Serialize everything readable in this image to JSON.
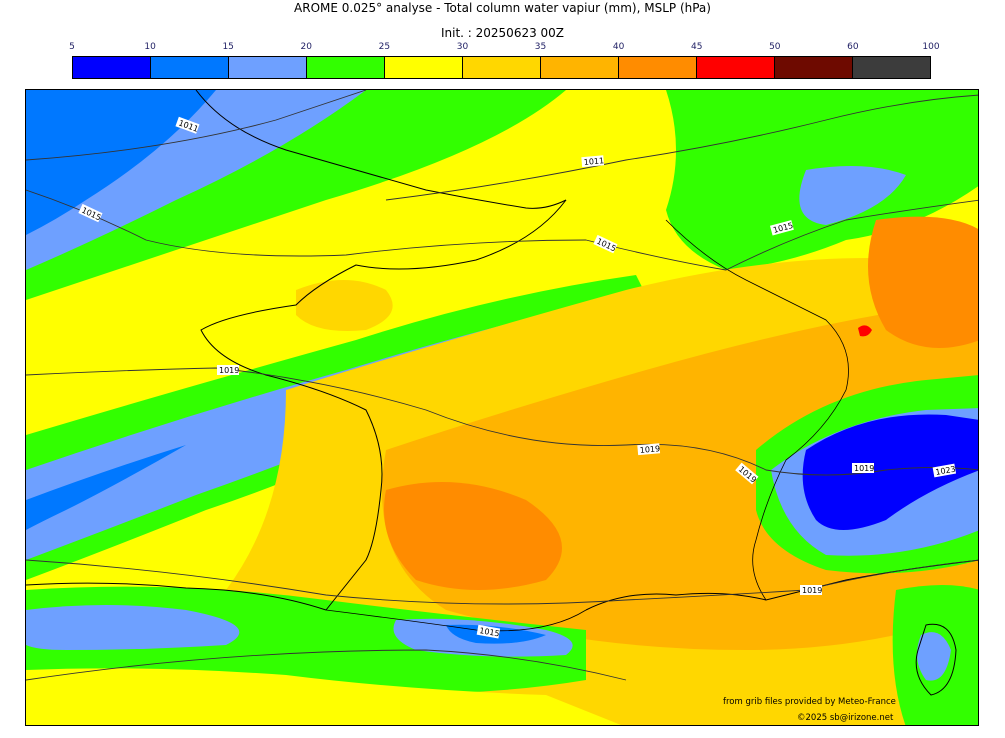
{
  "header": {
    "title": "AROME 0.025° analyse - Total column water vapiur (mm), MSLP (hPa)",
    "init": "Init. : 20250623 00Z"
  },
  "colorbar": {
    "ticks": [
      "5",
      "10",
      "15",
      "20",
      "25",
      "30",
      "35",
      "40",
      "45",
      "50",
      "60",
      "100"
    ],
    "colors": [
      "#0000ff",
      "#0078ff",
      "#6ea0ff",
      "#32ff00",
      "#ffff00",
      "#ffd700",
      "#ffb400",
      "#ff8c00",
      "#ff0000",
      "#6e0a00",
      "#3c3c3c"
    ]
  },
  "map": {
    "isobar_labels": [
      "1011",
      "1011",
      "1015",
      "1015",
      "1015",
      "1019",
      "1019",
      "1019",
      "1019",
      "1023",
      "1019",
      "1015"
    ]
  },
  "footer": {
    "source": "from grib files provided by Meteo-France",
    "copyright": "©2025 sb@irizone.net"
  }
}
